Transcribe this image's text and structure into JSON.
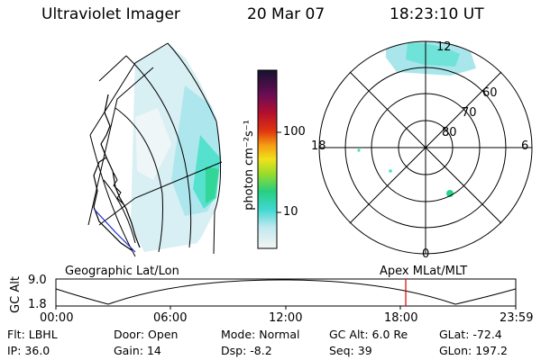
{
  "header": {
    "instrument": "Ultraviolet Imager",
    "date": "20 Mar 07",
    "time": "18:23:10 UT"
  },
  "colorbar": {
    "label": "photon cm⁻²s⁻¹",
    "ticks": [
      "100",
      "10"
    ]
  },
  "polar_plot": {
    "mlt_labels": {
      "top": "12",
      "left": "18",
      "right": "6",
      "bottom": "0"
    },
    "lat_labels": [
      "60",
      "70",
      "80"
    ]
  },
  "map_labels": {
    "left": "Geographic Lat/Lon",
    "right": "Apex MLat/MLT"
  },
  "altitude_plot": {
    "ylabel": "GC Alt",
    "y_ticks": [
      "9.0",
      "1.8"
    ],
    "x_ticks": [
      "00:00",
      "06:00",
      "12:00",
      "18:00",
      "23:59"
    ],
    "current_time_marker": "18:23"
  },
  "footer": {
    "row1": [
      {
        "label": "Flt:",
        "value": "LBHL"
      },
      {
        "label": "Door:",
        "value": "Open"
      },
      {
        "label": "Mode:",
        "value": "Normal"
      },
      {
        "label": "GC Alt:",
        "value": "6.0 Re"
      },
      {
        "label": "GLat:",
        "value": "-72.4"
      }
    ],
    "row2": [
      {
        "label": "IP:",
        "value": "36.0"
      },
      {
        "label": "Gain:",
        "value": "14"
      },
      {
        "label": "Dsp:",
        "value": "-8.2"
      },
      {
        "label": "Seq:",
        "value": "39"
      },
      {
        "label": "GLon:",
        "value": "197.2"
      }
    ]
  },
  "colors": {
    "aurora_light": "#cfeff2",
    "aurora_mid": "#3fe0d0",
    "aurora_strong": "#29d38a",
    "marker": "#e00000"
  }
}
